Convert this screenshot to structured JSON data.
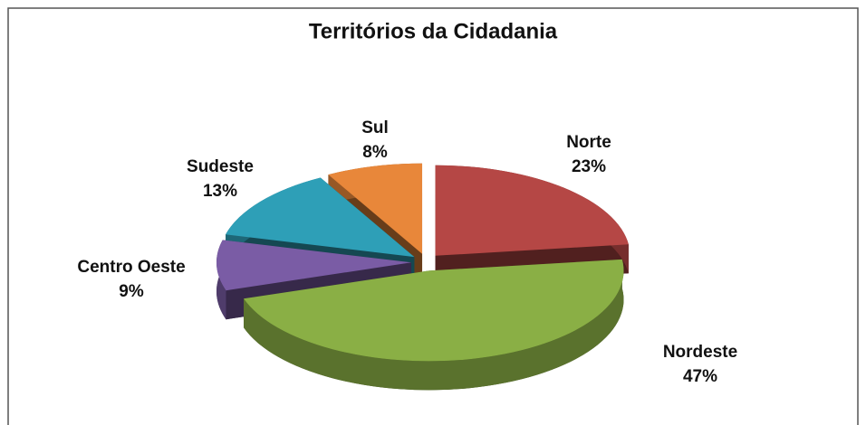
{
  "chart_data": {
    "type": "pie",
    "title": "Territórios da Cidadania",
    "categories": [
      "Norte",
      "Nordeste",
      "Centro Oeste",
      "Sudeste",
      "Sul"
    ],
    "values": [
      23,
      47,
      9,
      13,
      8
    ],
    "value_labels": [
      "23%",
      "47%",
      "9%",
      "13%",
      "8%"
    ],
    "colors": [
      "#b54745",
      "#8aaf45",
      "#7a5ca5",
      "#2e9fb7",
      "#e8873a"
    ]
  }
}
